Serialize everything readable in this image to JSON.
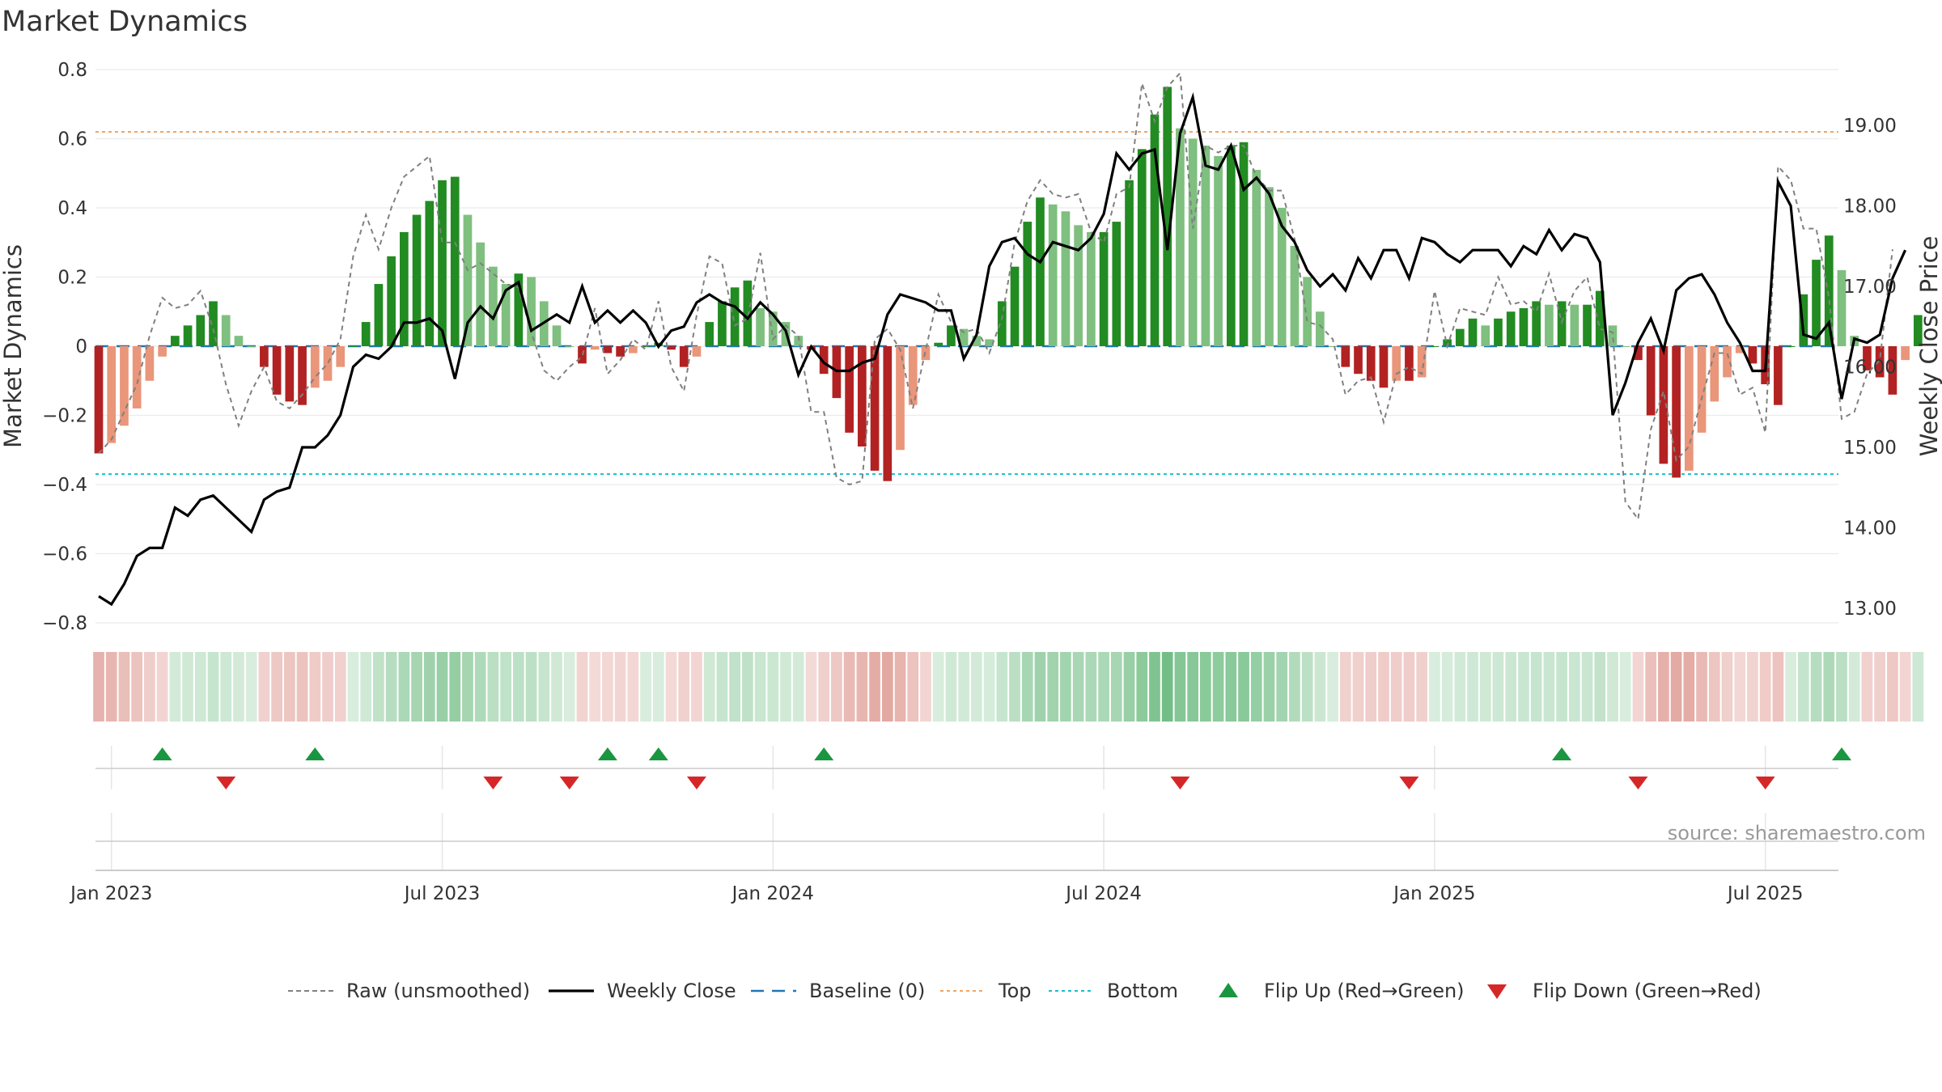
{
  "chart_data": {
    "type": "bar",
    "title": "Market Dynamics",
    "ylabel_left": "Market Dynamics",
    "ylabel_right": "Weekly Close Price",
    "left_axis": {
      "ylim": [
        -0.8,
        0.8
      ],
      "ticks": [
        "0.8",
        "0.6",
        "0.4",
        "0.2",
        "0",
        "−0.2",
        "−0.4",
        "−0.6",
        "−0.8"
      ]
    },
    "right_axis": {
      "ylim": [
        12.8,
        19.7
      ],
      "ticks": [
        "19.00",
        "18.00",
        "17.00",
        "16.00",
        "15.00",
        "14.00",
        "13.00"
      ]
    },
    "x_axis": {
      "start_week": "2022-12-26",
      "weeks": 138,
      "tick_labels": [
        "Jan 2023",
        "Jul 2023",
        "Jan 2024",
        "Jul 2024",
        "Jan 2025",
        "Jul 2025"
      ]
    },
    "reference_lines": {
      "baseline": 0,
      "top": 0.62,
      "bottom": -0.37
    },
    "series": [
      {
        "name": "Market Dynamics",
        "kind": "bar",
        "values": [
          -0.31,
          -0.28,
          -0.23,
          -0.18,
          -0.1,
          -0.03,
          0.03,
          0.06,
          0.09,
          0.13,
          0.09,
          0.03,
          0,
          -0.06,
          -0.14,
          -0.16,
          -0.17,
          -0.12,
          -0.1,
          -0.06,
          0,
          0.07,
          0.18,
          0.26,
          0.33,
          0.38,
          0.42,
          0.48,
          0.49,
          0.38,
          0.3,
          0.23,
          0.18,
          0.21,
          0.2,
          0.13,
          0.06,
          0,
          -0.05,
          -0.01,
          -0.02,
          -0.03,
          -0.02,
          0,
          0.01,
          -0.01,
          -0.06,
          -0.03,
          0.07,
          0.13,
          0.17,
          0.19,
          0.11,
          0.1,
          0.07,
          0.03,
          -0.01,
          -0.08,
          -0.15,
          -0.25,
          -0.29,
          -0.36,
          -0.39,
          -0.3,
          -0.17,
          -0.04,
          0.01,
          0.06,
          0.05,
          0.03,
          0.02,
          0.13,
          0.23,
          0.36,
          0.43,
          0.41,
          0.39,
          0.35,
          0.33,
          0.33,
          0.36,
          0.48,
          0.57,
          0.67,
          0.75,
          0.63,
          0.6,
          0.58,
          0.55,
          0.58,
          0.59,
          0.51,
          0.46,
          0.4,
          0.29,
          0.2,
          0.1,
          0,
          -0.06,
          -0.08,
          -0.1,
          -0.12,
          -0.1,
          -0.1,
          -0.09,
          0,
          0.02,
          0.05,
          0.08,
          0.06,
          0.08,
          0.1,
          0.11,
          0.13,
          0.12,
          0.13,
          0.12,
          0.12,
          0.16,
          0.06,
          0,
          -0.04,
          -0.2,
          -0.34,
          -0.38,
          -0.36,
          -0.25,
          -0.16,
          -0.09,
          -0.02,
          -0.05,
          -0.11,
          -0.17,
          0,
          0.15,
          0.25,
          0.32,
          0.22,
          0.03,
          -0.07,
          -0.09,
          -0.14,
          -0.04,
          0.09
        ]
      },
      {
        "name": "Raw (unsmoothed)",
        "kind": "line",
        "values": [
          -0.31,
          -0.27,
          -0.19,
          -0.11,
          0.03,
          0.14,
          0.11,
          0.12,
          0.16,
          0.05,
          -0.11,
          -0.23,
          -0.13,
          -0.06,
          -0.16,
          -0.18,
          -0.14,
          -0.09,
          -0.05,
          0.02,
          0.26,
          0.38,
          0.28,
          0.4,
          0.49,
          0.52,
          0.55,
          0.3,
          0.3,
          0.22,
          0.24,
          0.21,
          0.18,
          0.17,
          0.04,
          -0.07,
          -0.1,
          -0.06,
          -0.03,
          0.11,
          -0.08,
          -0.04,
          0.02,
          -0.01,
          0.13,
          -0.06,
          -0.13,
          0.09,
          0.26,
          0.24,
          0.06,
          0.08,
          0.27,
          0.02,
          0.06,
          0.03,
          -0.19,
          -0.19,
          -0.38,
          -0.4,
          -0.39,
          0.02,
          0.05,
          -0.01,
          -0.18,
          -0.01,
          0.15,
          0.07,
          0.04,
          0.05,
          -0.02,
          0.08,
          0.3,
          0.42,
          0.48,
          0.44,
          0.43,
          0.44,
          0.33,
          0.3,
          0.44,
          0.46,
          0.76,
          0.65,
          0.75,
          0.79,
          0.34,
          0.58,
          0.56,
          0.58,
          0.58,
          0.49,
          0.45,
          0.45,
          0.31,
          0.07,
          0.06,
          0.02,
          -0.14,
          -0.1,
          -0.09,
          -0.22,
          -0.08,
          -0.06,
          -0.08,
          0.16,
          0,
          0.11,
          0.1,
          0.09,
          0.2,
          0.12,
          0.13,
          0.1,
          0.21,
          0.07,
          0.16,
          0.2,
          0.05,
          0.04,
          -0.45,
          -0.5,
          -0.24,
          -0.13,
          -0.33,
          -0.29,
          -0.15,
          -0.02,
          -0.02,
          -0.14,
          -0.12,
          -0.25,
          0.52,
          0.48,
          0.34,
          0.34,
          0.14,
          -0.21,
          -0.19,
          -0.08,
          -0.04,
          0.28
        ]
      },
      {
        "name": "Weekly Close",
        "kind": "line",
        "axis": "right",
        "values": [
          13.15,
          13.05,
          13.3,
          13.65,
          13.75,
          13.75,
          14.25,
          14.15,
          14.35,
          14.4,
          14.25,
          14.1,
          13.95,
          14.35,
          14.45,
          14.5,
          15.0,
          15.0,
          15.15,
          15.4,
          16.0,
          16.15,
          16.1,
          16.25,
          16.55,
          16.55,
          16.6,
          16.45,
          15.85,
          16.55,
          16.75,
          16.6,
          16.95,
          17.05,
          16.45,
          16.55,
          16.65,
          16.55,
          17.0,
          16.55,
          16.7,
          16.55,
          16.7,
          16.55,
          16.25,
          16.45,
          16.5,
          16.8,
          16.9,
          16.8,
          16.75,
          16.6,
          16.8,
          16.65,
          16.45,
          15.9,
          16.25,
          16.05,
          15.95,
          15.95,
          16.05,
          16.1,
          16.65,
          16.9,
          16.85,
          16.8,
          16.7,
          16.7,
          16.1,
          16.4,
          17.25,
          17.55,
          17.6,
          17.4,
          17.3,
          17.55,
          17.5,
          17.45,
          17.6,
          17.9,
          18.65,
          18.45,
          18.65,
          18.7,
          17.45,
          18.9,
          19.35,
          18.5,
          18.45,
          18.75,
          18.2,
          18.35,
          18.15,
          17.75,
          17.55,
          17.2,
          17.0,
          17.15,
          16.95,
          17.35,
          17.1,
          17.45,
          17.45,
          17.1,
          17.6,
          17.55,
          17.4,
          17.3,
          17.45,
          17.45,
          17.45,
          17.25,
          17.5,
          17.4,
          17.7,
          17.45,
          17.65,
          17.6,
          17.3,
          15.4,
          15.8,
          16.3,
          16.6,
          16.2,
          16.95,
          17.1,
          17.15,
          16.9,
          16.55,
          16.3,
          15.95,
          15.95,
          18.3,
          18.0,
          16.4,
          16.35,
          16.55,
          15.6,
          16.35,
          16.3,
          16.4,
          17.1,
          17.45
        ]
      }
    ],
    "signals": {
      "flip_up_weeks": [
        5,
        17,
        40,
        44,
        57,
        115,
        137
      ],
      "flip_down_weeks": [
        10,
        31,
        37,
        47,
        85,
        103,
        121,
        131
      ]
    },
    "legend": {
      "placement": "bottom-center",
      "entries": [
        "Raw (unsmoothed)",
        "Weekly Close",
        "Baseline (0)",
        "Top",
        "Bottom",
        "Flip Up (Red→Green)",
        "Flip Down (Green→Red)"
      ]
    },
    "source": "source: sharemaestro.com",
    "colors": {
      "bar_up_strong": "#228b22",
      "bar_up_weak": "#7fbf7f",
      "bar_down_strong": "#b22222",
      "bar_down_weak": "#e9967a",
      "raw": "#808080",
      "close": "#000000",
      "baseline": "#1f77b4",
      "top": "#f4a460",
      "bottom": "#17becf",
      "flip_up": "#1a9641",
      "flip_down": "#d62728"
    }
  }
}
